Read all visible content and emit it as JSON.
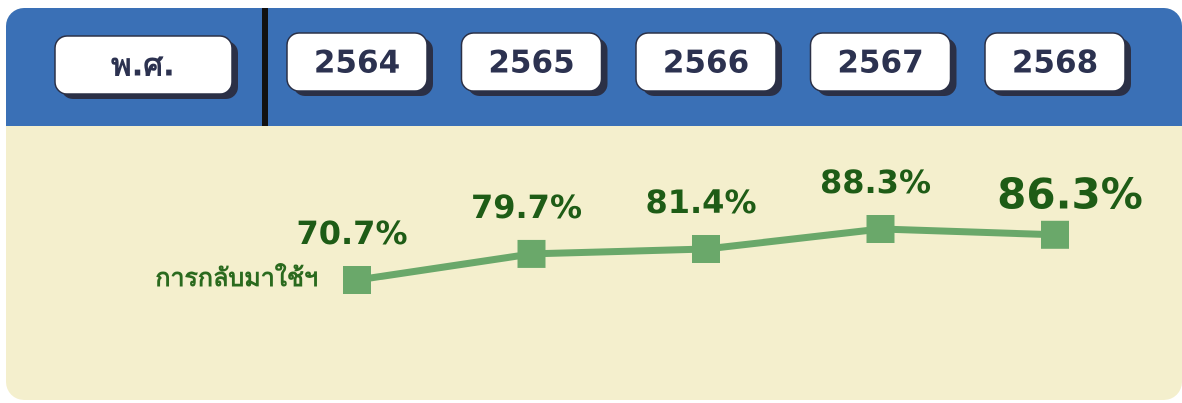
{
  "chart_data": {
    "type": "line",
    "header_label": "พ.ศ.",
    "categories": [
      "2564",
      "2565",
      "2566",
      "2567",
      "2568"
    ],
    "series": [
      {
        "name": "การกลับมาใช้ฯ",
        "color": "#6aa86a",
        "values": [
          70.7,
          79.7,
          81.4,
          88.3,
          86.3
        ],
        "value_labels": [
          "70.7%",
          "79.7%",
          "81.4%",
          "88.3%",
          "86.3%"
        ]
      }
    ]
  }
}
